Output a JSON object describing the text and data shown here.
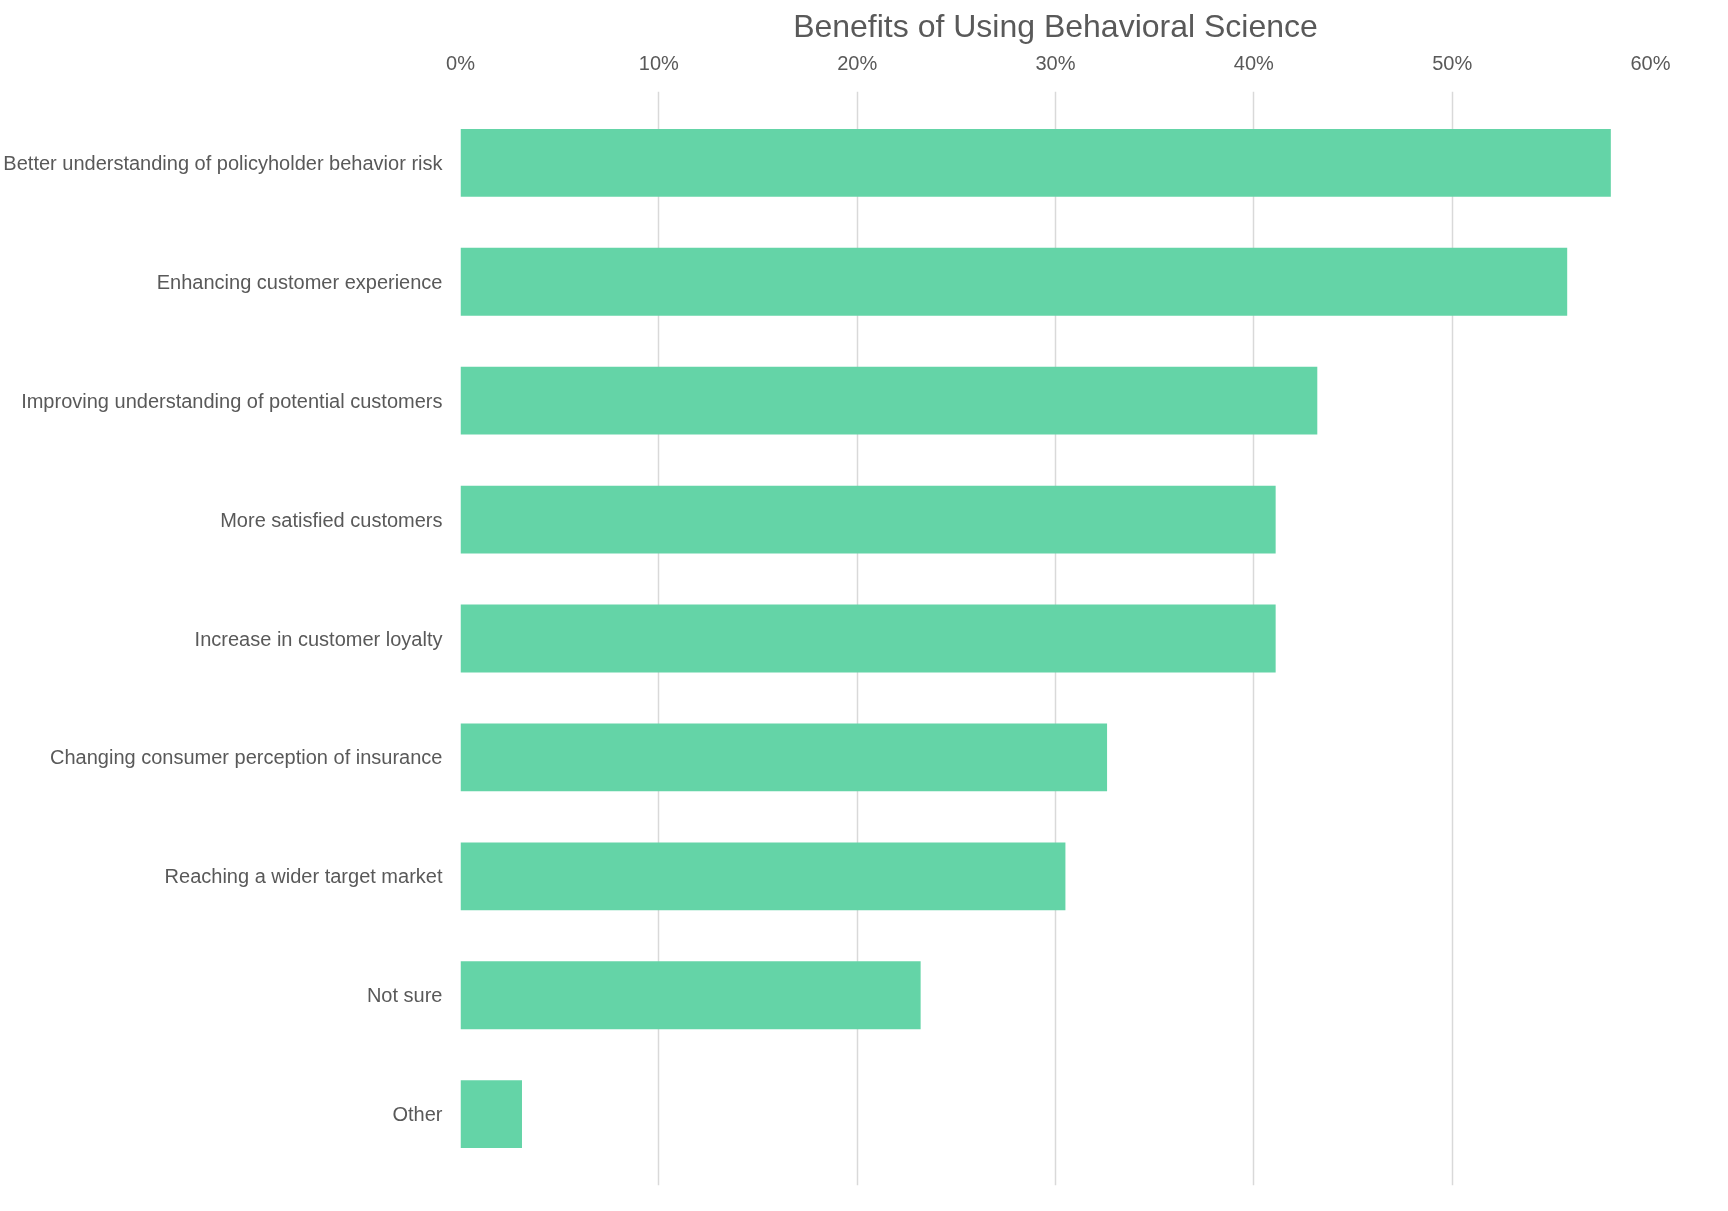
{
  "chart_data": {
    "type": "bar",
    "orientation": "horizontal",
    "title": "Benefits of Using Behavioral Science",
    "categories": [
      "Better understanding of policyholder behavior risk",
      "Enhancing customer experience",
      "Improving understanding of potential customers",
      "More satisfied customers",
      "Increase in customer loyalty",
      "Changing consumer perception of insurance",
      "Reaching a wider target market",
      "Not sure",
      "Other"
    ],
    "values": [
      58,
      55.8,
      43.2,
      41.1,
      41.1,
      32.6,
      30.5,
      23.2,
      3.1
    ],
    "color": "#64d4a7",
    "xlim": [
      0,
      60
    ],
    "xticks": [
      {
        "value": 0,
        "label": "0%"
      },
      {
        "value": 10,
        "label": "10%"
      },
      {
        "value": 20,
        "label": "20%"
      },
      {
        "value": 30,
        "label": "30%"
      },
      {
        "value": 40,
        "label": "40%"
      },
      {
        "value": 50,
        "label": "50%"
      },
      {
        "value": 60,
        "label": "60%"
      }
    ],
    "grid": "x"
  }
}
